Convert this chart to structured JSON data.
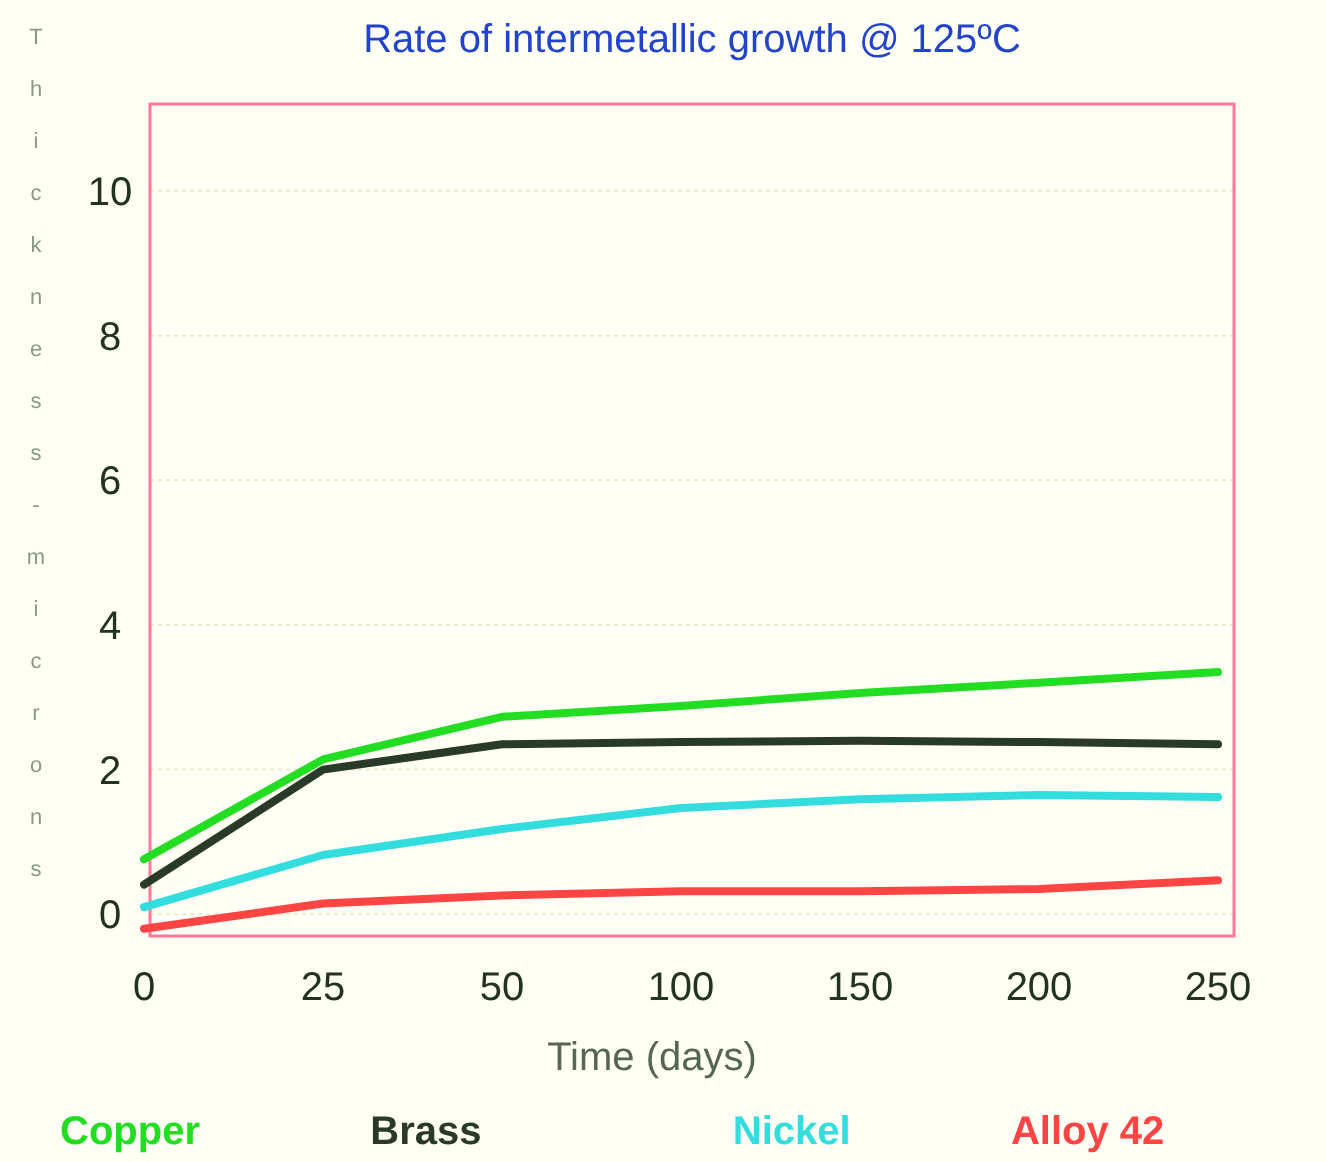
{
  "chart_data": {
    "type": "line",
    "title": "Rate of intermetallic growth @ 125ºC",
    "xlabel": "Time (days)",
    "ylabel": "Thickness - microns",
    "categories": [
      "0",
      "25",
      "50",
      "100",
      "150",
      "200",
      "250"
    ],
    "series": [
      {
        "name": "Copper",
        "color": "#22dd22",
        "values": [
          0.76,
          2.14,
          2.73,
          2.88,
          3.06,
          3.2,
          3.35
        ]
      },
      {
        "name": "Brass",
        "color": "#2a3a2a",
        "values": [
          0.41,
          2.0,
          2.35,
          2.38,
          2.4,
          2.38,
          2.35
        ]
      },
      {
        "name": "Nickel",
        "color": "#33dddd",
        "values": [
          0.1,
          0.82,
          1.18,
          1.47,
          1.59,
          1.65,
          1.62
        ]
      },
      {
        "name": "Alloy 42",
        "color": "#ff4444",
        "values": [
          -0.2,
          0.15,
          0.26,
          0.32,
          0.32,
          0.35,
          0.47
        ]
      }
    ],
    "ylim": [
      -0.3,
      11.2
    ],
    "yticks": [
      0,
      2,
      4,
      6,
      8,
      10
    ],
    "grid": "y",
    "legend": "bottom",
    "marker": "none",
    "line_style": "solid"
  }
}
